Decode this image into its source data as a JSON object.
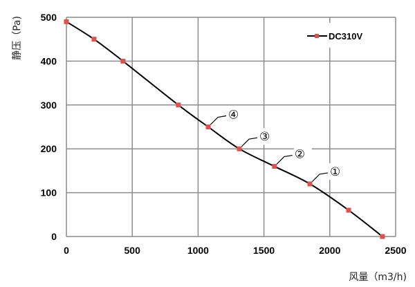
{
  "chart_data": {
    "type": "line",
    "title": "",
    "xlabel": "风量（m3/h)",
    "ylabel": "静压（Pa)",
    "xlim": [
      0,
      2500
    ],
    "ylim": [
      0,
      500
    ],
    "xticks": [
      "0",
      "500",
      "1000",
      "1500",
      "2000",
      "2500"
    ],
    "yticks": [
      "0",
      "100",
      "200",
      "300",
      "400",
      "500"
    ],
    "grid": true,
    "legend_position": "top-right",
    "series": [
      {
        "name": "DC310V",
        "line_color": "#000000",
        "marker_color": "#d9534f",
        "x": [
          0,
          210,
          430,
          850,
          1077,
          1313,
          1580,
          1849,
          2143,
          2400
        ],
        "y": [
          490,
          450,
          400,
          300,
          250,
          200,
          160,
          120,
          60,
          0
        ]
      }
    ],
    "annotations": [
      {
        "label": "④",
        "x": 1077,
        "y": 250
      },
      {
        "label": "③",
        "x": 1313,
        "y": 200
      },
      {
        "label": "②",
        "x": 1580,
        "y": 160
      },
      {
        "label": "①",
        "x": 1849,
        "y": 120
      }
    ]
  }
}
